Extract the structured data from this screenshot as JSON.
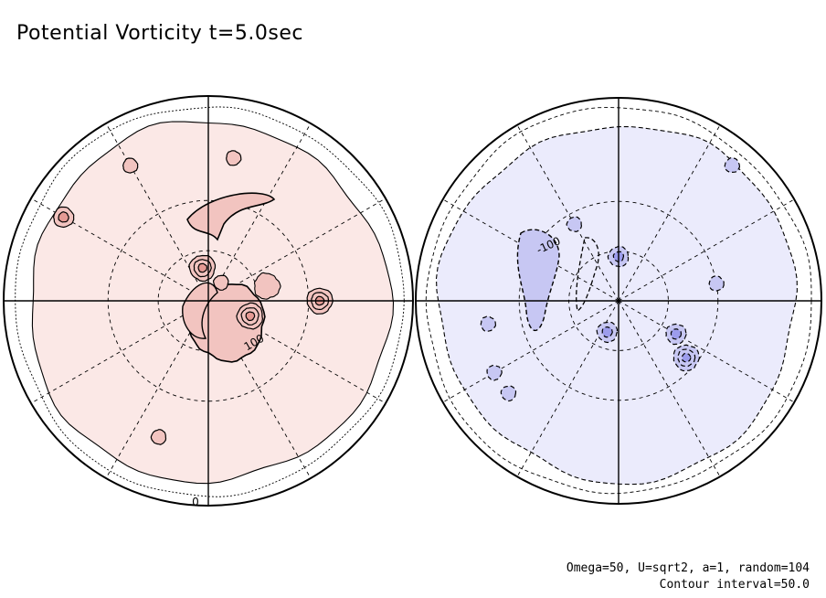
{
  "title": "Potential Vorticity t=5.0sec",
  "footer": {
    "params": "Omega=50, U=sqrt2, a=1, random=104",
    "interval": "Contour interval=50.0"
  },
  "colors": {
    "positive_fill": "#fbe8e6",
    "positive_mid": "#f2c4c0",
    "positive_core": "#e59a94",
    "negative_fill": "#ebebfc",
    "negative_mid": "#c7c7f3",
    "negative_core": "#9c9cec",
    "line": "#000000"
  },
  "chart_data": {
    "type": "heatmap",
    "title": "Potential Vorticity t=5.0sec",
    "projection": "polar stereographic, two hemispheres",
    "contour_interval": 50.0,
    "panels": [
      {
        "name": "left hemisphere",
        "sign": "positive",
        "contour_labels": [
          "100",
          "0"
        ],
        "vortices": [
          {
            "lon": 90,
            "lat": 40,
            "level": 3
          },
          {
            "lon": -10,
            "lat": 75,
            "level": 3
          },
          {
            "lon": 110,
            "lat": 70,
            "level": 3
          },
          {
            "lon": 35,
            "lat": 80,
            "level": 1
          },
          {
            "lon": 200,
            "lat": 25,
            "level": 1
          },
          {
            "lon": 300,
            "lat": 15,
            "level": 2
          },
          {
            "lon": 330,
            "lat": 20,
            "level": 1
          },
          {
            "lon": 10,
            "lat": 25,
            "level": 1
          }
        ]
      },
      {
        "name": "right hemisphere",
        "sign": "negative",
        "contour_labels": [
          "-100"
        ],
        "vortices": [
          {
            "lon": 130,
            "lat": 50,
            "level": 3
          },
          {
            "lon": 120,
            "lat": 60,
            "level": 2
          },
          {
            "lon": 200,
            "lat": 75,
            "level": 2
          },
          {
            "lon": 0,
            "lat": 70,
            "level": 2
          },
          {
            "lon": 330,
            "lat": 50,
            "level": 1
          },
          {
            "lon": 40,
            "lat": 10,
            "level": 1
          },
          {
            "lon": 80,
            "lat": 45,
            "level": 1
          },
          {
            "lon": 260,
            "lat": 30,
            "level": 1
          },
          {
            "lon": 240,
            "lat": 25,
            "level": 1
          },
          {
            "lon": 230,
            "lat": 25,
            "level": 1
          }
        ]
      }
    ]
  }
}
